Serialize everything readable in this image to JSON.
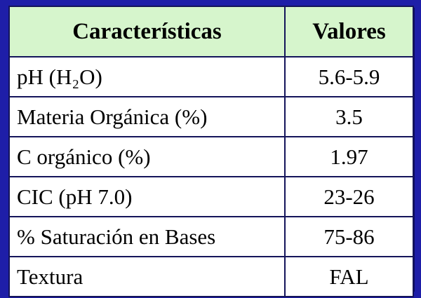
{
  "table": {
    "header": [
      "Características",
      "Valores"
    ],
    "rows": [
      [
        "pH (H₂O)",
        "5.6-5.9"
      ],
      [
        "Materia Orgánica (%)",
        "3.5"
      ],
      [
        "C orgánico (%)",
        "1.97"
      ],
      [
        "CIC (pH 7.0)",
        "23-26"
      ],
      [
        "% Saturación en Bases",
        "75-86"
      ],
      [
        "Textura",
        "FAL"
      ]
    ]
  }
}
